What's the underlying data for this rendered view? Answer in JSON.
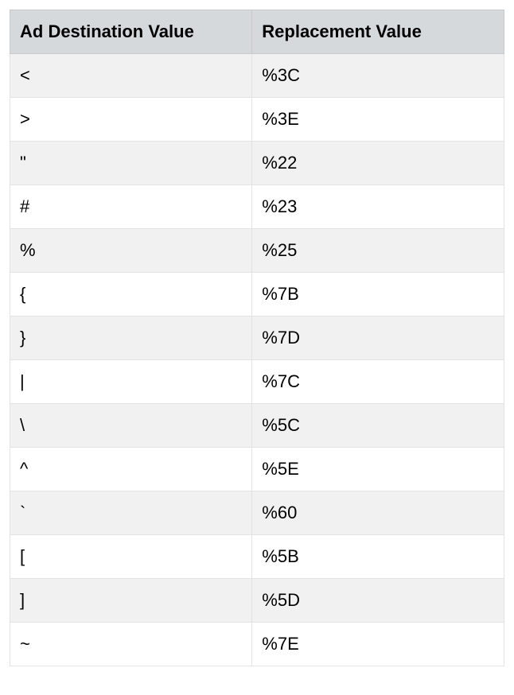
{
  "table": {
    "type": "table",
    "columns": [
      "Ad Destination Value",
      "Replacement Value"
    ],
    "rows": [
      [
        "<",
        "%3C"
      ],
      [
        ">",
        "%3E"
      ],
      [
        "\"",
        "%22"
      ],
      [
        "#",
        "%23"
      ],
      [
        "%",
        "%25"
      ],
      [
        "{",
        "%7B"
      ],
      [
        "}",
        "%7D"
      ],
      [
        "|",
        "%7C"
      ],
      [
        "\\",
        "%5C"
      ],
      [
        "^",
        "%5E"
      ],
      [
        "`",
        "%60"
      ],
      [
        "[",
        "%5B"
      ],
      [
        "]",
        "%5D"
      ],
      [
        "~",
        "%7E"
      ]
    ],
    "header_background": "#d5d9dc",
    "row_alt_background": "#f1f1f1",
    "row_background": "#ffffff",
    "border_color": "#d5d5d5",
    "font_size": 22,
    "header_font_weight": 700,
    "text_color": "#000000"
  }
}
